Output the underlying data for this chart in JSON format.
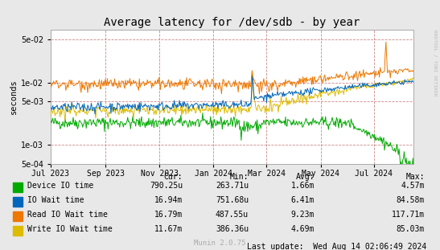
{
  "title": "Average latency for /dev/sdb - by year",
  "ylabel": "seconds",
  "watermark": "RRDTOOL / TOBI OETIKER",
  "munin_version": "Munin 2.0.75",
  "last_update": "Last update:  Wed Aug 14 02:06:49 2024",
  "background_color": "#e8e8e8",
  "plot_bg_color": "#ffffff",
  "colors": {
    "device_io": "#00aa00",
    "io_wait": "#0066bb",
    "read_io_wait": "#ee7700",
    "write_io_wait": "#ddbb00"
  },
  "legend": [
    {
      "label": "Device IO time",
      "color": "#00aa00",
      "cur": "790.25u",
      "min": "263.71u",
      "avg": "1.66m",
      "max": "4.57m"
    },
    {
      "label": "IO Wait time",
      "color": "#0066bb",
      "cur": "16.94m",
      "min": "751.68u",
      "avg": "6.41m",
      "max": "84.58m"
    },
    {
      "label": "Read IO Wait time",
      "color": "#ee7700",
      "cur": "16.79m",
      "min": "487.55u",
      "avg": "9.23m",
      "max": "117.71m"
    },
    {
      "label": "Write IO Wait time",
      "color": "#ddbb00",
      "cur": "11.67m",
      "min": "386.36u",
      "avg": "4.69m",
      "max": "85.03m"
    }
  ],
  "xstart": 1688169600,
  "xend": 1723593600,
  "xticks": [
    1688169600,
    1693526400,
    1698796800,
    1704067200,
    1709251200,
    1714521600,
    1719705600
  ],
  "xtick_labels": [
    "Jul 2023",
    "Sep 2023",
    "Nov 2023",
    "Jan 2024",
    "Mar 2024",
    "May 2024",
    "Jul 2024"
  ],
  "hlines": [
    0.0005,
    0.001,
    0.005,
    0.01,
    0.05
  ],
  "seed": 42,
  "n_points": 500
}
